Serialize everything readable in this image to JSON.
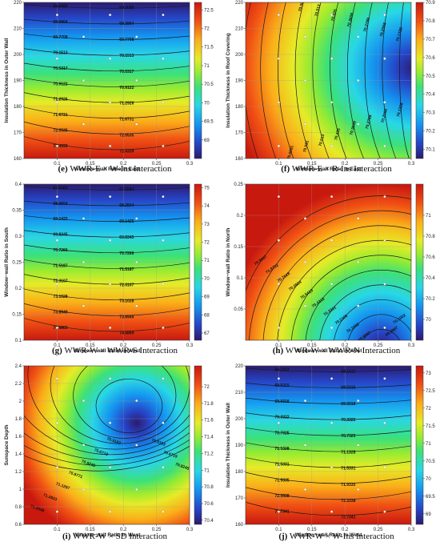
{
  "chart_data": [
    {
      "id": "e",
      "type": "heatmap",
      "caption_tag": "(e)",
      "caption_text": "WWR-E × W-Ins Interaction",
      "xlabel": "Window−wall Ratio in East",
      "ylabel": "Insulation Thickness in Outer Wall",
      "xlim": [
        0.05,
        0.3
      ],
      "ylim": [
        160,
        220
      ],
      "xticks": [
        "0.1",
        "0.15",
        "0.2",
        "0.25",
        "0.3"
      ],
      "yticks": [
        "160",
        "170",
        "180",
        "190",
        "200",
        "210",
        "220"
      ],
      "colorbar_range": [
        68.5,
        72.7
      ],
      "colorbar_ticks": [
        "69",
        "69.5",
        "70",
        "70.5",
        "71",
        "71.5",
        "72",
        "72.5"
      ],
      "contour_labels": [
        "69.0089",
        "69.3904",
        "69.7708",
        "70.1513",
        "70.5317",
        "70.9122",
        "71.2926",
        "71.6731",
        "72.0535",
        "72.4339"
      ]
    },
    {
      "id": "f",
      "type": "heatmap",
      "caption_tag": "(f)",
      "caption_text": "WWR-E × R-Ins Interaction",
      "xlabel": "Window−wall Ratio in East",
      "ylabel": "Insulation Thickness in Roof Covering",
      "xlim": [
        0.05,
        0.3
      ],
      "ylim": [
        160,
        220
      ],
      "xticks": [
        "0.1",
        "0.15",
        "0.2",
        "0.25",
        "0.3"
      ],
      "yticks": [
        "160",
        "170",
        "180",
        "190",
        "200",
        "210",
        "220"
      ],
      "colorbar_range": [
        70.05,
        70.9
      ],
      "colorbar_ticks": [
        "70.1",
        "70.2",
        "70.3",
        "70.4",
        "70.5",
        "70.6",
        "70.7",
        "70.8",
        "70.9"
      ],
      "contour_labels": [
        "70.1228",
        "70.2068",
        "70.2789",
        "70.3669",
        "70.435",
        "70.513",
        "70.591",
        "70.6691",
        "70.7471",
        "70.8251"
      ]
    },
    {
      "id": "g",
      "type": "heatmap",
      "caption_tag": "(g)",
      "caption_text": "WWR-W × WWR-S Interaction",
      "xlabel": "Window−wall Ratio in West",
      "ylabel": "Window−wall Ratio in South",
      "xlim": [
        0.05,
        0.3
      ],
      "ylim": [
        0.1,
        0.4
      ],
      "xticks": [
        "0.1",
        "0.15",
        "0.2",
        "0.25",
        "0.3"
      ],
      "yticks": [
        "0.1",
        "0.15",
        "0.2",
        "0.25",
        "0.3",
        "0.35",
        "0.4"
      ],
      "colorbar_range": [
        66.6,
        75.2
      ],
      "colorbar_ticks": [
        "67",
        "68",
        "69",
        "70",
        "71",
        "72",
        "73",
        "74",
        "75"
      ],
      "contour_labels": [
        "67.5583",
        "68.2504",
        "69.1425",
        "69.8345",
        "70.7266",
        "71.5187",
        "72.3107",
        "73.1028",
        "73.8949",
        "74.6869"
      ]
    },
    {
      "id": "h",
      "type": "heatmap",
      "caption_tag": "(h)",
      "caption_text": "WWR-W × WWR-N Interaction",
      "xlabel": "Window−wall Ratio in West",
      "ylabel": "Window−wall Ratio in North",
      "xlim": [
        0.05,
        0.3
      ],
      "ylim": [
        0.0,
        0.25
      ],
      "xticks": [
        "0.1",
        "0.15",
        "0.2",
        "0.25",
        "0.3"
      ],
      "yticks": [
        "0.05",
        "0.1",
        "0.15",
        "0.2",
        "0.25"
      ],
      "colorbar_range": [
        69.8,
        71.3
      ],
      "colorbar_ticks": [
        "70",
        "70.2",
        "70.4",
        "70.6",
        "70.8",
        "71"
      ],
      "contour_labels": [
        "69.9897",
        "70.1002",
        "70.2106",
        "70.3211",
        "70.4315",
        "70.5419",
        "70.6524",
        "70.7628",
        "70.8732",
        "70.9837"
      ]
    },
    {
      "id": "i",
      "type": "heatmap",
      "caption_tag": "(i)",
      "caption_text": "WWR-W × SD Interaction",
      "xlabel": "Window−wall Ratio in West",
      "ylabel": "Sunspace Depth",
      "xlim": [
        0.05,
        0.3
      ],
      "ylim": [
        0.6,
        2.4
      ],
      "xticks": [
        "0.1",
        "0.15",
        "0.2",
        "0.25",
        "0.3"
      ],
      "yticks": [
        "0.6",
        "0.8",
        "1",
        "1.2",
        "1.4",
        "1.6",
        "1.8",
        "2",
        "2.2",
        "2.4"
      ],
      "colorbar_range": [
        70.35,
        72.25
      ],
      "colorbar_ticks": [
        "70.4",
        "70.6",
        "70.8",
        "71",
        "71.2",
        "71.4",
        "71.6",
        "71.8",
        "72"
      ],
      "contour_labels": [
        "70.5193",
        "70.6719",
        "70.8245",
        "70.9771",
        "71.1297",
        "71.2823",
        "71.4349",
        "71.5875"
      ]
    },
    {
      "id": "j",
      "type": "heatmap",
      "caption_tag": "(j)",
      "caption_text": "WWR-W × W-Ins Interaction",
      "xlabel": "Window−wall Ratio in West",
      "ylabel": "Insulation Thickness in Outer Wall",
      "xlim": [
        0.05,
        0.3
      ],
      "ylim": [
        160,
        220
      ],
      "xticks": [
        "0.1",
        "0.15",
        "0.2",
        "0.25",
        "0.3"
      ],
      "yticks": [
        "160",
        "170",
        "180",
        "190",
        "200",
        "210",
        "220"
      ],
      "colorbar_range": [
        68.7,
        73.2
      ],
      "colorbar_ticks": [
        "69",
        "69.5",
        "70",
        "70.5",
        "71",
        "71.5",
        "72",
        "72.5",
        "73"
      ],
      "contour_labels": [
        "69.1312",
        "69.5315",
        "69.9318",
        "70.3322",
        "70.7325",
        "71.1328",
        "71.5331",
        "71.9335",
        "72.3338",
        "72.7341"
      ]
    }
  ]
}
